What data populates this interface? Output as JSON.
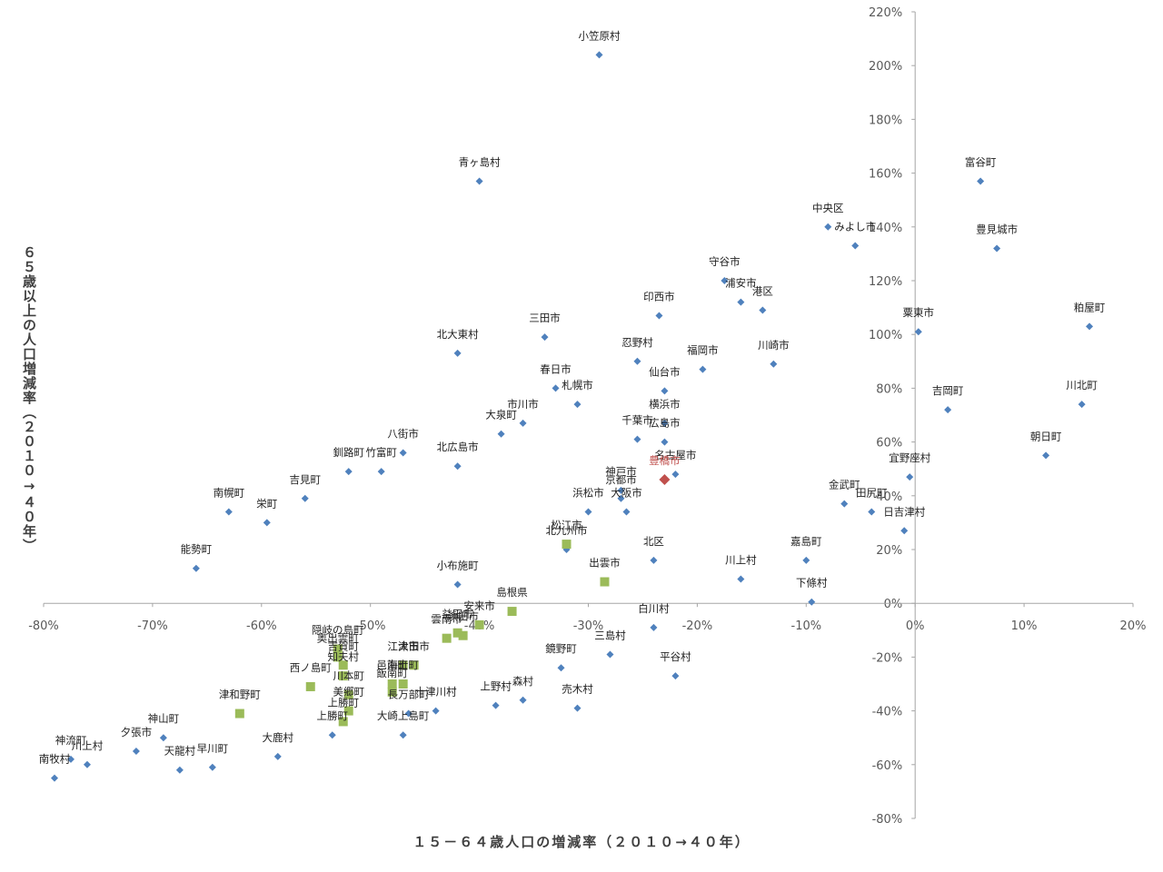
{
  "chart_data": {
    "type": "scatter",
    "xlabel": "１５－６４歳人口の増減率（２０１０→４０年）",
    "ylabel": "６５歳以上の人口増減率（２０１０→４０年）",
    "x_ticks": [
      "-80%",
      "-70%",
      "-60%",
      "-50%",
      "-40%",
      "-30%",
      "-20%",
      "-10%",
      "0%",
      "10%",
      "20%"
    ],
    "y_ticks": [
      "220%",
      "200%",
      "180%",
      "160%",
      "140%",
      "120%",
      "100%",
      "80%",
      "60%",
      "40%",
      "20%",
      "0%",
      "-20%",
      "-40%",
      "-60%",
      "-80%"
    ],
    "xlim": [
      -80,
      20
    ],
    "ylim": [
      -80,
      220
    ],
    "colors": {
      "municipality": "#4f81bd",
      "shimane": "#9bbb59",
      "highlight": "#c0504d"
    },
    "series": [
      {
        "marker": "diamond",
        "points": [
          {
            "name": "小笠原村",
            "x": -29,
            "y": 204
          },
          {
            "name": "青ヶ島村",
            "x": -40,
            "y": 157
          },
          {
            "name": "富谷町",
            "x": 6,
            "y": 157
          },
          {
            "name": "中央区",
            "x": -8,
            "y": 140
          },
          {
            "name": "みよし市",
            "x": -5.5,
            "y": 133
          },
          {
            "name": "豊見城市",
            "x": 7.5,
            "y": 132
          },
          {
            "name": "守谷市",
            "x": -17.5,
            "y": 120
          },
          {
            "name": "浦安市",
            "x": -16,
            "y": 112
          },
          {
            "name": "港区",
            "x": -14,
            "y": 109
          },
          {
            "name": "印西市",
            "x": -23.5,
            "y": 107
          },
          {
            "name": "粕屋町",
            "x": 16,
            "y": 103
          },
          {
            "name": "三田市",
            "x": -34,
            "y": 99
          },
          {
            "name": "粟東市",
            "x": 0.3,
            "y": 101
          },
          {
            "name": "北大東村",
            "x": -42,
            "y": 93
          },
          {
            "name": "忍野村",
            "x": -25.5,
            "y": 90
          },
          {
            "name": "川崎市",
            "x": -13,
            "y": 89
          },
          {
            "name": "福岡市",
            "x": -19.5,
            "y": 87
          },
          {
            "name": "仙台市",
            "x": -23,
            "y": 79
          },
          {
            "name": "春日市",
            "x": -33,
            "y": 80
          },
          {
            "name": "札幌市",
            "x": -31,
            "y": 74
          },
          {
            "name": "川北町",
            "x": 15.3,
            "y": 74
          },
          {
            "name": "吉岡町",
            "x": 3,
            "y": 72
          },
          {
            "name": "市川市",
            "x": -36,
            "y": 67
          },
          {
            "name": "横浜市",
            "x": -23,
            "y": 67
          },
          {
            "name": "大泉町",
            "x": -38,
            "y": 63
          },
          {
            "name": "千葉市",
            "x": -25.5,
            "y": 61
          },
          {
            "name": "広島市",
            "x": -23,
            "y": 60
          },
          {
            "name": "八街市",
            "x": -47,
            "y": 56
          },
          {
            "name": "朝日町",
            "x": 12,
            "y": 55
          },
          {
            "name": "北広島市",
            "x": -42,
            "y": 51
          },
          {
            "name": "釧路町",
            "x": -52,
            "y": 49
          },
          {
            "name": "竹富町",
            "x": -49,
            "y": 49
          },
          {
            "name": "名古屋市",
            "x": -22,
            "y": 48
          },
          {
            "name": "宜野座村",
            "x": -0.5,
            "y": 47
          },
          {
            "name": "神戸市",
            "x": -27,
            "y": 42
          },
          {
            "name": "吉見町",
            "x": -56,
            "y": 39
          },
          {
            "name": "京都市",
            "x": -27,
            "y": 39
          },
          {
            "name": "金武町",
            "x": -6.5,
            "y": 37
          },
          {
            "name": "田尻町",
            "x": -4,
            "y": 34
          },
          {
            "name": "浜松市",
            "x": -30,
            "y": 34
          },
          {
            "name": "大阪市",
            "x": -26.5,
            "y": 34
          },
          {
            "name": "南幌町",
            "x": -63,
            "y": 34
          },
          {
            "name": "栄町",
            "x": -59.5,
            "y": 30
          },
          {
            "name": "日吉津村",
            "x": -1,
            "y": 27
          },
          {
            "name": "北九州市",
            "x": -32,
            "y": 20
          },
          {
            "name": "北区",
            "x": -24,
            "y": 16
          },
          {
            "name": "嘉島町",
            "x": -10,
            "y": 16
          },
          {
            "name": "能勢町",
            "x": -66,
            "y": 13
          },
          {
            "name": "川上村",
            "x": -16,
            "y": 9
          },
          {
            "name": "小布施町",
            "x": -42,
            "y": 7
          },
          {
            "name": "下條村",
            "x": -9.5,
            "y": 0.5
          },
          {
            "name": "白川村",
            "x": -24,
            "y": -9
          },
          {
            "name": "三島村",
            "x": -28,
            "y": -19
          },
          {
            "name": "鏡野町",
            "x": -32.5,
            "y": -24
          },
          {
            "name": "平谷村",
            "x": -22,
            "y": -27
          },
          {
            "name": "森村",
            "x": -36,
            "y": -36
          },
          {
            "name": "上野村",
            "x": -38.5,
            "y": -38
          },
          {
            "name": "売木村",
            "x": -31,
            "y": -39
          },
          {
            "name": "十津川村",
            "x": -44,
            "y": -40
          },
          {
            "name": "長万部町",
            "x": -46.5,
            "y": -41
          },
          {
            "name": "大崎上島町",
            "x": -47,
            "y": -49
          },
          {
            "name": "上勝町",
            "x": -53.5,
            "y": -49
          },
          {
            "name": "大鹿村",
            "x": -58.5,
            "y": -57
          },
          {
            "name": "神山町",
            "x": -69,
            "y": -50
          },
          {
            "name": "夕張市",
            "x": -71.5,
            "y": -55
          },
          {
            "name": "神流町",
            "x": -77.5,
            "y": -58
          },
          {
            "name": "川上村",
            "x": -76,
            "y": -60
          },
          {
            "name": "南牧村",
            "x": -79,
            "y": -65
          },
          {
            "name": "天龍村",
            "x": -67.5,
            "y": -62
          },
          {
            "name": "早川町",
            "x": -64.5,
            "y": -61
          }
        ]
      },
      {
        "marker": "square",
        "points": [
          {
            "name": "松江市",
            "x": -32,
            "y": 22
          },
          {
            "name": "出雲市",
            "x": -28.5,
            "y": 8
          },
          {
            "name": "島根県",
            "x": -37,
            "y": -3
          },
          {
            "name": "安来市",
            "x": -40,
            "y": -8
          },
          {
            "name": "浜田市",
            "x": -41.5,
            "y": -12
          },
          {
            "name": "益田市",
            "x": -42,
            "y": -11
          },
          {
            "name": "雲南市",
            "x": -43,
            "y": -13
          },
          {
            "name": "大田市",
            "x": -46,
            "y": -23
          },
          {
            "name": "江津市",
            "x": -47,
            "y": -23
          },
          {
            "name": "隠岐の島町",
            "x": -53,
            "y": -17
          },
          {
            "name": "奥出雲町",
            "x": -53,
            "y": -20
          },
          {
            "name": "吉賀町",
            "x": -52.5,
            "y": -23
          },
          {
            "name": "知夫村",
            "x": -52.5,
            "y": -27
          },
          {
            "name": "海士町",
            "x": -47,
            "y": -30
          },
          {
            "name": "西ノ島町",
            "x": -55.5,
            "y": -31
          },
          {
            "name": "川本町",
            "x": -52,
            "y": -34
          },
          {
            "name": "邑南町",
            "x": -48,
            "y": -30
          },
          {
            "name": "飯南町",
            "x": -48,
            "y": -33
          },
          {
            "name": "美郷町",
            "x": -52,
            "y": -40
          },
          {
            "name": "津和野町",
            "x": -62,
            "y": -41
          },
          {
            "name": "上勝町",
            "x": -52.5,
            "y": -44
          }
        ]
      },
      {
        "marker": "diamond",
        "points": [
          {
            "name": "豊橋市",
            "x": -23,
            "y": 46
          }
        ]
      }
    ]
  }
}
